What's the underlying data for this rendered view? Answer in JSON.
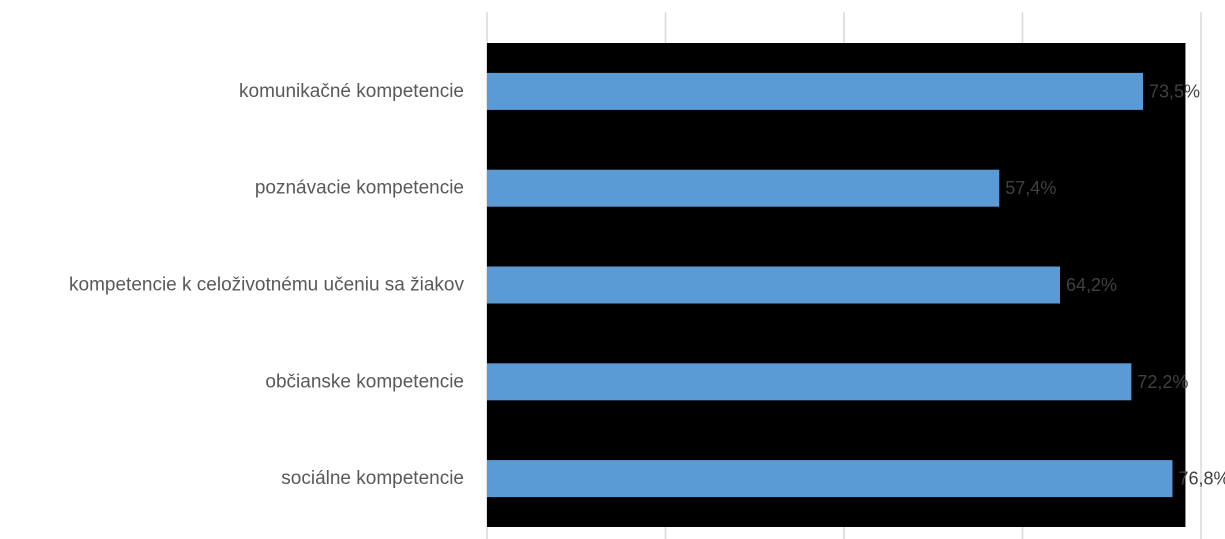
{
  "chart_data": {
    "type": "bar",
    "orientation": "horizontal",
    "categories": [
      "komunikačné kompetencie",
      "poznávacie kompetencie",
      "kompetencie k celoživotnému učeniu sa žiakov",
      "občianske kompetencie",
      "sociálne kompetencie"
    ],
    "values": [
      73.5,
      57.4,
      64.2,
      72.2,
      76.8
    ],
    "data_labels": [
      "73,5%",
      "57,4%",
      "64,2%",
      "72,2%",
      "76,8%"
    ],
    "value_unit": "%",
    "xlim": [
      0,
      80
    ],
    "title": "",
    "xlabel": "",
    "ylabel": "",
    "grid": true,
    "colors": {
      "bar": "#5B9BD5",
      "plot_background": "#000000",
      "gridline": "#D9D9D9",
      "category_text": "#595959",
      "data_label_text": "#404040"
    }
  }
}
